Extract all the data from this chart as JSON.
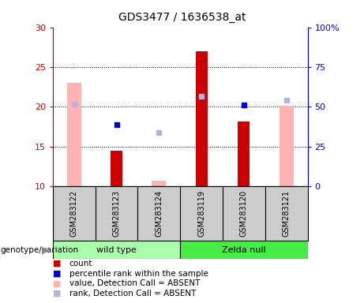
{
  "title": "GDS3477 / 1636538_at",
  "samples": [
    "GSM283122",
    "GSM283123",
    "GSM283124",
    "GSM283119",
    "GSM283120",
    "GSM283121"
  ],
  "ylim_left": [
    10,
    30
  ],
  "ylim_right": [
    0,
    100
  ],
  "yticks_left": [
    10,
    15,
    20,
    25,
    30
  ],
  "ytick_labels_right": [
    "0",
    "25",
    "50",
    "75",
    "100%"
  ],
  "count_values": [
    null,
    14.5,
    null,
    27.0,
    18.2,
    null
  ],
  "percentile_rank_values": [
    null,
    17.8,
    null,
    21.3,
    20.2,
    null
  ],
  "absent_value_values": [
    23.0,
    null,
    10.7,
    null,
    null,
    20.1
  ],
  "absent_rank_values": [
    20.3,
    null,
    16.8,
    21.3,
    null,
    20.8
  ],
  "count_color": "#cc0000",
  "percentile_color": "#0000cc",
  "absent_value_color": "#ffb3b3",
  "absent_rank_color": "#b3b3dd",
  "bar_width": 0.28,
  "left_axis_color": "#cc0000",
  "right_axis_color": "#0000cc",
  "sample_box_color": "#cccccc",
  "wt_color": "#aaffaa",
  "zelda_color": "#44ee44",
  "legend_items": [
    [
      "#cc0000",
      "count"
    ],
    [
      "#0000cc",
      "percentile rank within the sample"
    ],
    [
      "#ffb3b3",
      "value, Detection Call = ABSENT"
    ],
    [
      "#b3b3dd",
      "rank, Detection Call = ABSENT"
    ]
  ]
}
